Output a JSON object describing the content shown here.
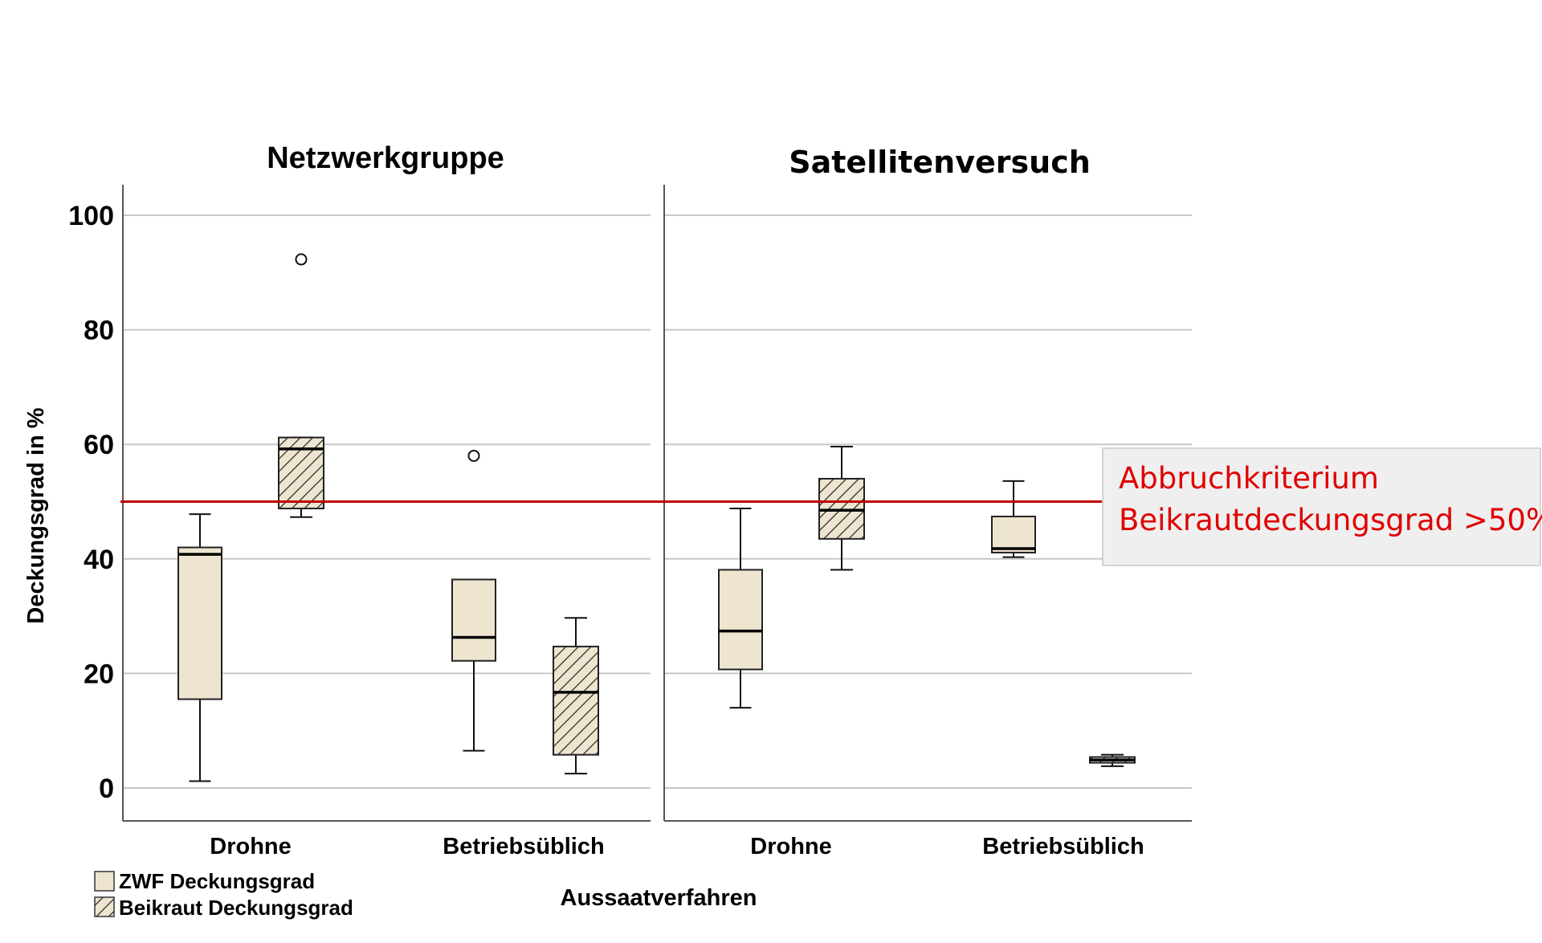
{
  "chart_data": {
    "type": "boxplot",
    "ylabel": "Deckungsgrad in %",
    "xlabel": "Aussaatverfahren",
    "ylim": [
      -5,
      105
    ],
    "yticks": [
      0,
      20,
      40,
      60,
      80,
      100
    ],
    "grid": true,
    "panels": [
      {
        "title": "Netzwerkgruppe",
        "categories": [
          "Drohne",
          "Betriebsüblich"
        ],
        "series": [
          {
            "name": "ZWF Deckungsgrad",
            "boxes": [
              {
                "category": "Drohne",
                "min": 1.2,
                "q1": 15.5,
                "median": 40.8,
                "q3": 42.0,
                "max": 47.8,
                "outliers": []
              },
              {
                "category": "Betriebsüblich",
                "min": 6.5,
                "q1": 22.2,
                "median": 26.3,
                "q3": 36.4,
                "max": 36.4,
                "outliers": [
                  58.0
                ]
              }
            ]
          },
          {
            "name": "Beikraut Deckungsgrad",
            "boxes": [
              {
                "category": "Drohne",
                "min": 47.3,
                "q1": 48.8,
                "median": 59.2,
                "q3": 61.2,
                "max": 61.2,
                "outliers": [
                  92.3
                ]
              },
              {
                "category": "Betriebsüblich",
                "min": 2.5,
                "q1": 5.8,
                "median": 16.7,
                "q3": 24.7,
                "max": 29.7,
                "outliers": []
              }
            ]
          }
        ]
      },
      {
        "title": "Satellitenversuch",
        "categories": [
          "Drohne",
          "Betriebsüblich"
        ],
        "series": [
          {
            "name": "ZWF Deckungsgrad",
            "boxes": [
              {
                "category": "Drohne",
                "min": 14.0,
                "q1": 20.7,
                "median": 27.4,
                "q3": 38.1,
                "max": 48.8,
                "outliers": []
              },
              {
                "category": "Betriebsüblich",
                "min": 40.3,
                "q1": 41.1,
                "median": 41.8,
                "q3": 47.4,
                "max": 53.6,
                "outliers": []
              }
            ]
          },
          {
            "name": "Beikraut Deckungsgrad",
            "boxes": [
              {
                "category": "Drohne",
                "min": 38.1,
                "q1": 43.5,
                "median": 48.5,
                "q3": 54.0,
                "max": 59.6,
                "outliers": []
              },
              {
                "category": "Betriebsüblich",
                "min": 3.8,
                "q1": 4.4,
                "median": 4.9,
                "q3": 5.4,
                "max": 5.8,
                "outliers": []
              }
            ]
          }
        ]
      }
    ],
    "reference_line": {
      "y": 50,
      "color": "#c00000"
    },
    "annotation": {
      "line1": "Abbruchkriterium",
      "line2": "Beikrautdeckungsgrad >50%",
      "color": "#e00000"
    },
    "legend": {
      "placement": "bottom-left",
      "items": [
        "ZWF Deckungsgrad",
        "Beikraut Deckungsgrad"
      ]
    },
    "colors": {
      "box_fill": "#ede5cf",
      "grid": "#c8c8c8",
      "axis": "#555555"
    }
  }
}
